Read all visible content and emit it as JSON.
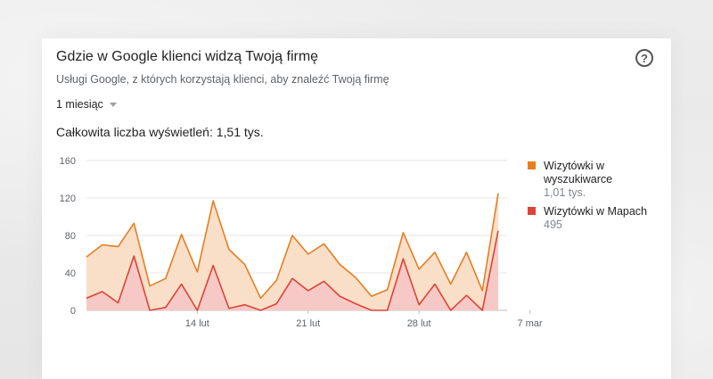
{
  "card": {
    "title": "Gdzie w Google klienci widzą Twoją firmę",
    "subtitle": "Usługi Google, z których korzystają klienci, aby znaleźć Twoją firmę",
    "period_label": "1 miesiąc",
    "total_text": "Całkowita liczba wyświetleń: 1,51 tys.",
    "help_glyph": "?"
  },
  "legend": [
    {
      "name": "Wizytówki w wyszukiwarce",
      "value": "1,01 tys.",
      "color": "#e67e22"
    },
    {
      "name": "Wizytówki w Mapach",
      "value": "495",
      "color": "#db4437"
    }
  ],
  "chart_data": {
    "type": "area",
    "ylim": [
      0,
      160
    ],
    "y_ticks": [
      0,
      40,
      80,
      120,
      160
    ],
    "y_tick_labels": [
      "0",
      "40",
      "80",
      "120",
      "160"
    ],
    "x_tick_labels": [
      "14 lut",
      "21 lut",
      "28 lut",
      "7 mar"
    ],
    "x_tick_index": [
      7,
      14,
      21,
      28
    ],
    "series": [
      {
        "name": "Wizytówki w wyszukiwarce",
        "color": "#e67e22",
        "fill": "#f9dfc8",
        "values": [
          57,
          70,
          68,
          93,
          26,
          34,
          81,
          41,
          117,
          65,
          49,
          13,
          32,
          80,
          60,
          71,
          49,
          35,
          15,
          22,
          83,
          44,
          62,
          28,
          62,
          21,
          125
        ]
      },
      {
        "name": "Wizytówki w Mapach",
        "color": "#db4437",
        "fill": "#f7c9c6",
        "values": [
          13,
          20,
          8,
          58,
          0,
          3,
          28,
          0,
          48,
          2,
          6,
          0,
          7,
          34,
          21,
          31,
          15,
          7,
          0,
          0,
          55,
          6,
          28,
          0,
          16,
          0,
          85
        ]
      }
    ]
  }
}
